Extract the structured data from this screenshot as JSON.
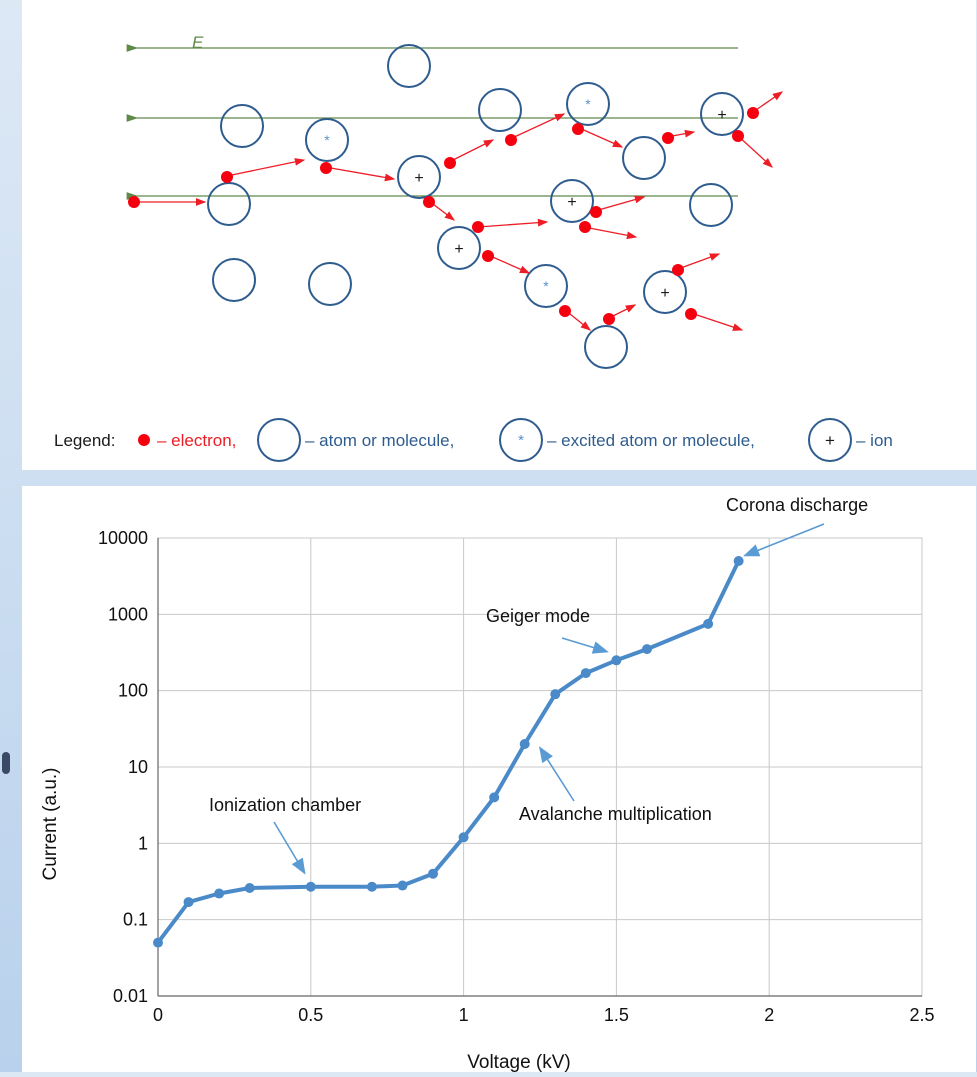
{
  "colors": {
    "electron": "#f5000f",
    "arrow": "#ee1c25",
    "atom_stroke": "#2e5c8e",
    "field_line": "#5f8a4a",
    "star": "#5b8fcc",
    "series": "#4a8ac8",
    "annotation_arrow": "#5a9bd4",
    "grid": "#c8c8c8"
  },
  "diagram": {
    "field_label": "E",
    "legend": {
      "prefix": "Legend:",
      "electron": "– electron,",
      "atom": "– atom or molecule,",
      "excited": "– excited atom or molecule,",
      "ion": "– ion",
      "excited_symbol": "*",
      "ion_symbol": "+"
    }
  },
  "chart_data": {
    "type": "line",
    "xlabel": "Voltage (kV)",
    "ylabel": "Current (a.u.)",
    "xlim": [
      0,
      2.5
    ],
    "ylim": [
      0.01,
      10000
    ],
    "yscale": "log",
    "grid": true,
    "x_ticks": [
      "0",
      "0.5",
      "1",
      "1.5",
      "2",
      "2.5"
    ],
    "y_ticks": [
      "0.01",
      "0.1",
      "1",
      "10",
      "100",
      "1000",
      "10000"
    ],
    "series": [
      {
        "x": [
          0,
          0.1,
          0.2,
          0.3,
          0.5,
          0.7,
          0.8,
          0.9,
          1.0,
          1.1,
          1.2,
          1.3,
          1.4,
          1.5,
          1.6,
          1.8,
          1.9
        ],
        "y": [
          0.05,
          0.17,
          0.22,
          0.26,
          0.27,
          0.27,
          0.28,
          0.4,
          1.2,
          4,
          20,
          90,
          170,
          250,
          350,
          750,
          5000
        ]
      }
    ],
    "annotations": [
      {
        "text": "Ionization chamber",
        "point": [
          0.48,
          0.3
        ]
      },
      {
        "text": "Avalanche multiplication",
        "point": [
          1.23,
          15
        ]
      },
      {
        "text": "Geiger mode",
        "point": [
          1.49,
          270
        ]
      },
      {
        "text": "Corona discharge",
        "point": [
          1.9,
          5200
        ]
      }
    ]
  }
}
